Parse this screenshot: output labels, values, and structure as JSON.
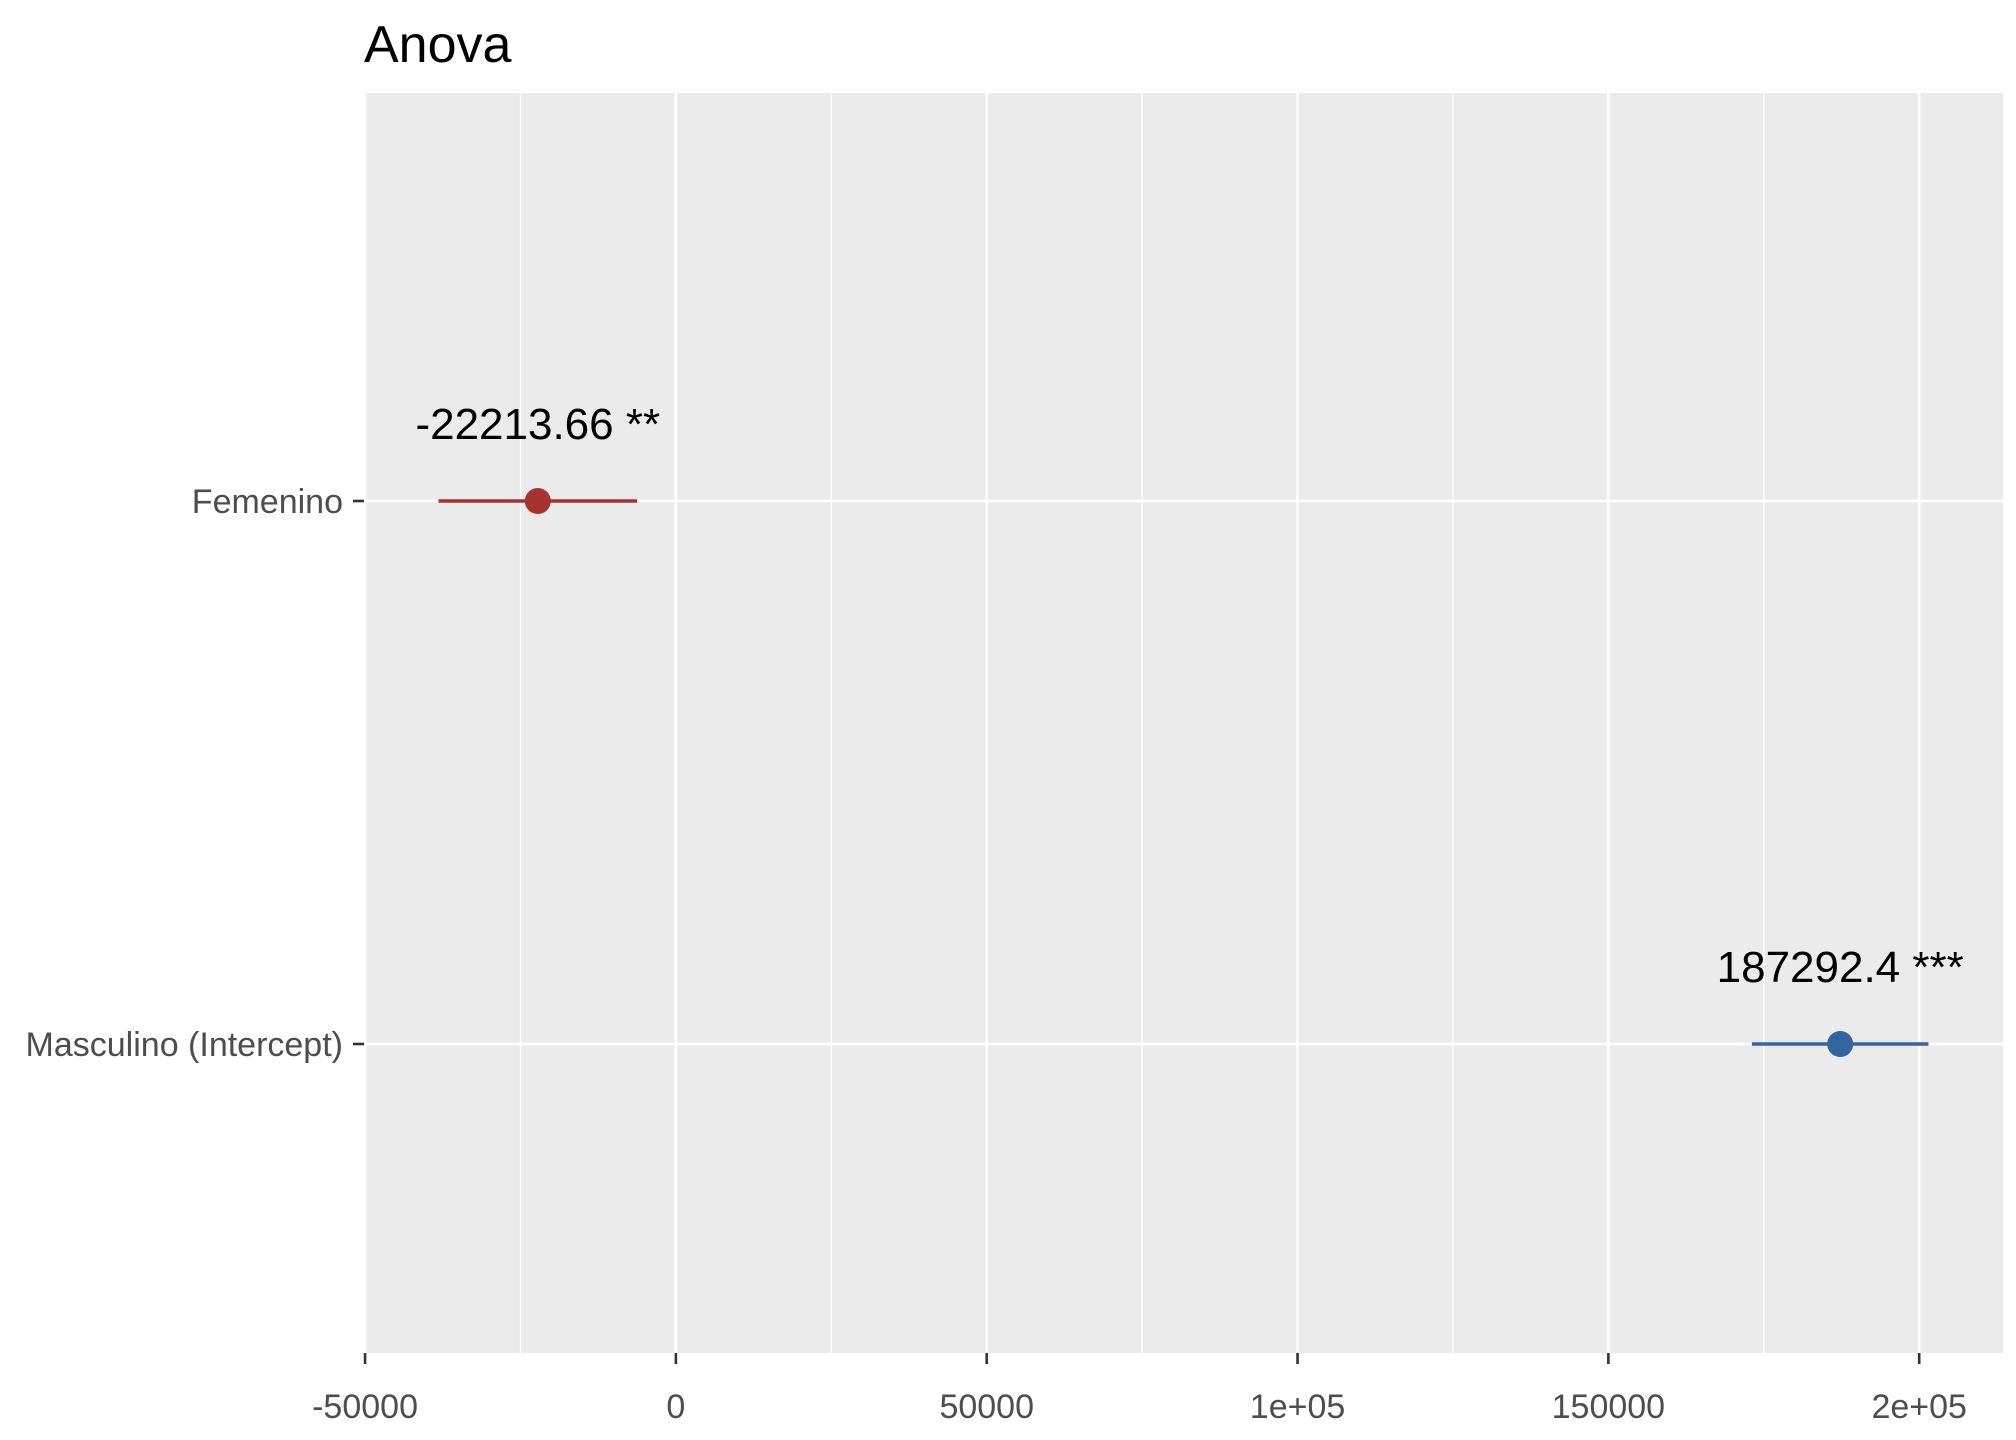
{
  "chart_data": {
    "type": "scatter",
    "title": "Anova",
    "xlim": [
      -50170,
      213480
    ],
    "x_ticks": [
      {
        "value": -50000,
        "label": "-50000"
      },
      {
        "value": 0,
        "label": "0"
      },
      {
        "value": 50000,
        "label": "50000"
      },
      {
        "value": 100000,
        "label": "1e+05"
      },
      {
        "value": 150000,
        "label": "150000"
      },
      {
        "value": 200000,
        "label": "2e+05"
      }
    ],
    "grid": true,
    "points": [
      {
        "term": "Femenino",
        "estimate": -22213.66,
        "conf_low": -38190,
        "conf_high": -6240,
        "label": "-22213.66 **",
        "color": "#A63232"
      },
      {
        "term": "Masculino (Intercept)",
        "estimate": 187292.4,
        "conf_low": 173080,
        "conf_high": 201500,
        "label": "187292.4 ***",
        "color": "#35659F"
      }
    ]
  }
}
